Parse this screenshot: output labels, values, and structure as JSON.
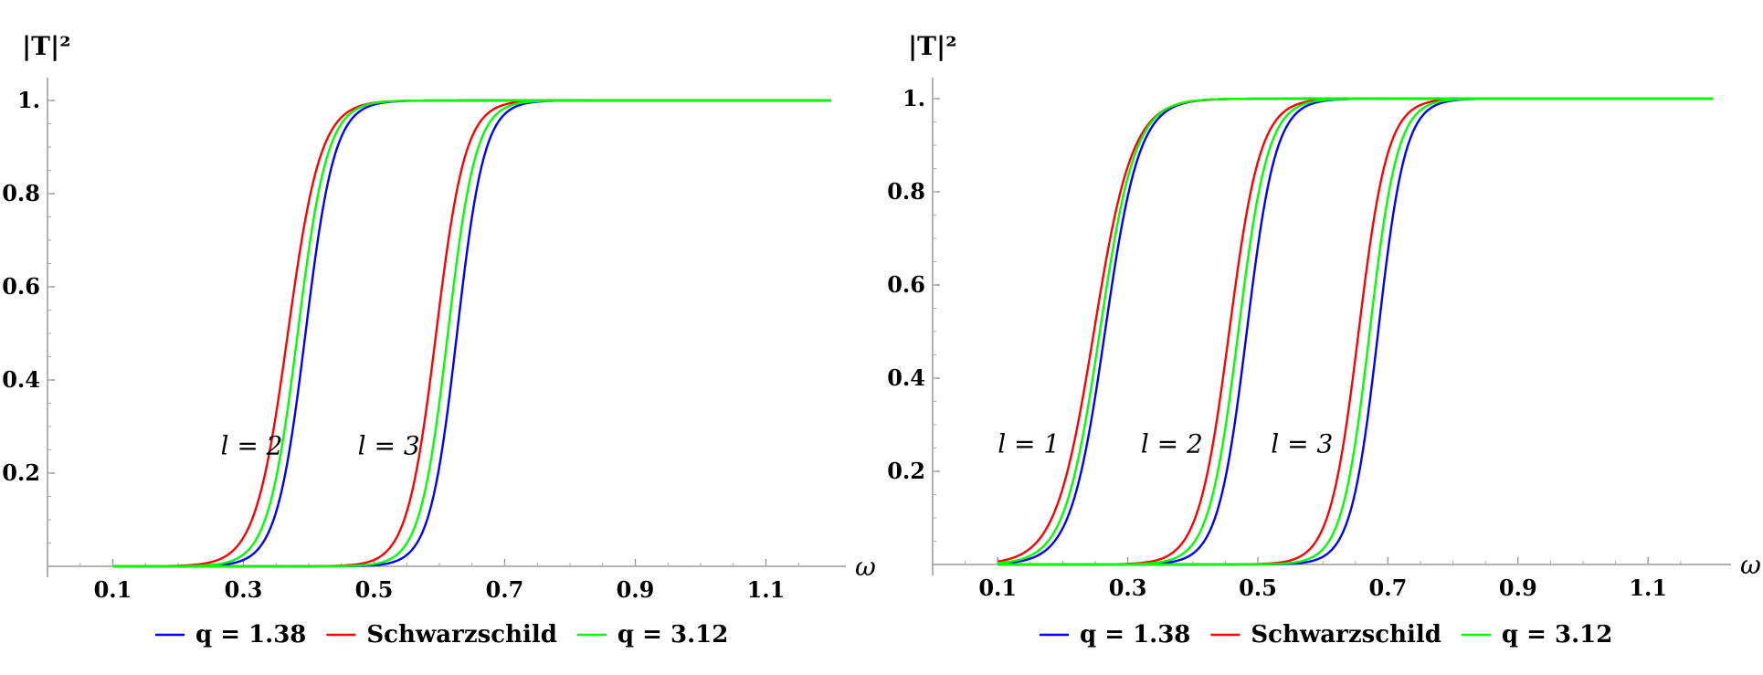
{
  "chart_data": [
    {
      "type": "line",
      "title": "",
      "xlabel": "ω",
      "ylabel": "|T|²",
      "xlim": [
        0.0,
        1.22
      ],
      "ylim": [
        0.0,
        1.03
      ],
      "x_ticks": [
        "0.1",
        "0.3",
        "0.5",
        "0.7",
        "0.9",
        "1.1"
      ],
      "x_tick_values": [
        0.1,
        0.3,
        0.5,
        0.7,
        0.9,
        1.1
      ],
      "y_ticks": [
        "0.2",
        "0.4",
        "0.6",
        "0.8",
        "1."
      ],
      "y_tick_values": [
        0.2,
        0.4,
        0.6,
        0.8,
        1.0
      ],
      "grid": false,
      "legend_position": "bottom",
      "x_range_plotted": [
        0.1,
        1.2
      ],
      "curve_labels": [
        {
          "text": "l = 2",
          "x": 0.265,
          "y": 0.24
        },
        {
          "text": "l = 3",
          "x": 0.475,
          "y": 0.24
        }
      ],
      "series": [
        {
          "name": "q = 1.38",
          "color": "#0000ff",
          "curves": [
            {
              "l": "2",
              "midpoint": 0.395,
              "steepness": 45
            },
            {
              "l": "3",
              "midpoint": 0.627,
              "steepness": 48
            }
          ]
        },
        {
          "name": "Schwarzschild",
          "color": "#ff0000",
          "curves": [
            {
              "l": "2",
              "midpoint": 0.368,
              "steepness": 40
            },
            {
              "l": "3",
              "midpoint": 0.595,
              "steepness": 45
            }
          ]
        },
        {
          "name": "q = 3.12",
          "color": "#00ff00",
          "curves": [
            {
              "l": "2",
              "midpoint": 0.383,
              "steepness": 44
            },
            {
              "l": "3",
              "midpoint": 0.613,
              "steepness": 47
            }
          ]
        }
      ]
    },
    {
      "type": "line",
      "title": "",
      "xlabel": "ω",
      "ylabel": "|T|²",
      "xlim": [
        0.0,
        1.22
      ],
      "ylim": [
        0.0,
        1.03
      ],
      "x_ticks": [
        "0.1",
        "0.3",
        "0.5",
        "0.7",
        "0.9",
        "1.1"
      ],
      "x_tick_values": [
        0.1,
        0.3,
        0.5,
        0.7,
        0.9,
        1.1
      ],
      "y_ticks": [
        "0.2",
        "0.4",
        "0.6",
        "0.8",
        "1."
      ],
      "y_tick_values": [
        0.2,
        0.4,
        0.6,
        0.8,
        1.0
      ],
      "grid": false,
      "legend_position": "bottom",
      "x_range_plotted": [
        0.1,
        1.2
      ],
      "curve_labels": [
        {
          "text": "l = 1",
          "x": 0.1,
          "y": 0.24
        },
        {
          "text": "l = 2",
          "x": 0.32,
          "y": 0.24
        },
        {
          "text": "l = 3",
          "x": 0.52,
          "y": 0.24
        }
      ],
      "series": [
        {
          "name": "q = 1.38",
          "color": "#0000ff",
          "curves": [
            {
              "l": "1",
              "midpoint": 0.265,
              "steepness": 38
            },
            {
              "l": "2",
              "midpoint": 0.483,
              "steepness": 45
            },
            {
              "l": "3",
              "midpoint": 0.685,
              "steepness": 48
            }
          ]
        },
        {
          "name": "Schwarzschild",
          "color": "#ff0000",
          "curves": [
            {
              "l": "1",
              "midpoint": 0.248,
              "steepness": 34
            },
            {
              "l": "2",
              "midpoint": 0.456,
              "steepness": 42
            },
            {
              "l": "3",
              "midpoint": 0.655,
              "steepness": 45
            }
          ]
        },
        {
          "name": "q = 3.12",
          "color": "#00ff00",
          "curves": [
            {
              "l": "1",
              "midpoint": 0.257,
              "steepness": 37
            },
            {
              "l": "2",
              "midpoint": 0.47,
              "steepness": 44
            },
            {
              "l": "3",
              "midpoint": 0.672,
              "steepness": 47
            }
          ]
        }
      ]
    }
  ]
}
